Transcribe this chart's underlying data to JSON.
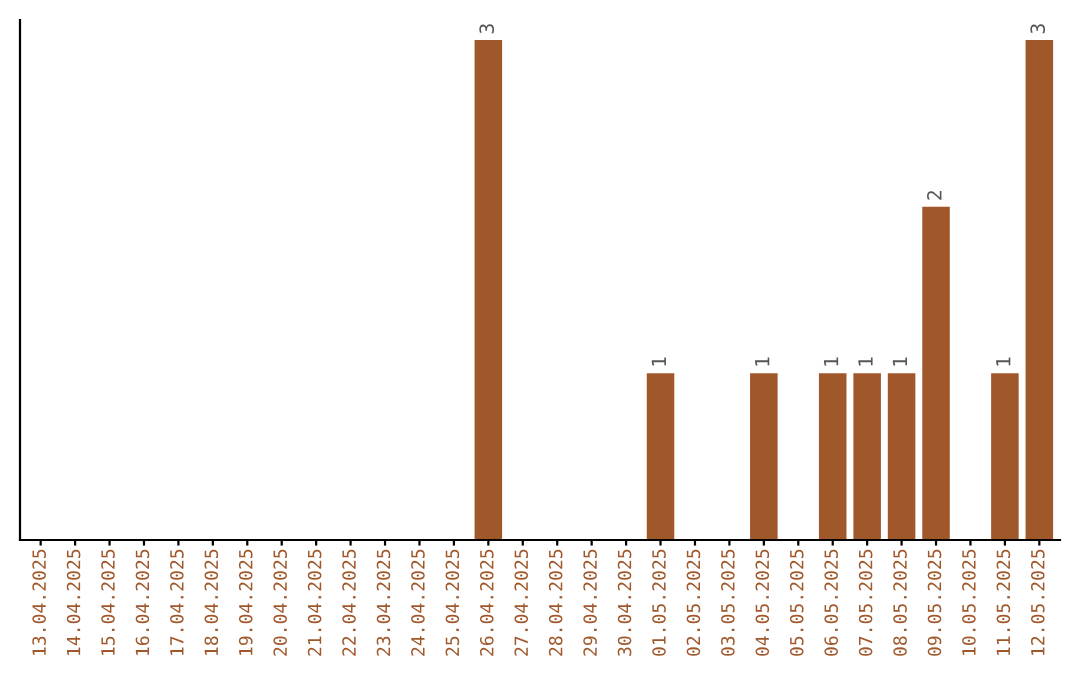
{
  "chart_data": {
    "type": "bar",
    "categories": [
      "13.04.2025",
      "14.04.2025",
      "15.04.2025",
      "16.04.2025",
      "17.04.2025",
      "18.04.2025",
      "19.04.2025",
      "20.04.2025",
      "21.04.2025",
      "22.04.2025",
      "23.04.2025",
      "24.04.2025",
      "25.04.2025",
      "26.04.2025",
      "27.04.2025",
      "28.04.2025",
      "29.04.2025",
      "30.04.2025",
      "01.05.2025",
      "02.05.2025",
      "03.05.2025",
      "04.05.2025",
      "05.05.2025",
      "06.05.2025",
      "07.05.2025",
      "08.05.2025",
      "09.05.2025",
      "10.05.2025",
      "11.05.2025",
      "12.05.2025"
    ],
    "values": [
      null,
      null,
      null,
      null,
      null,
      null,
      null,
      null,
      null,
      null,
      null,
      null,
      null,
      3,
      null,
      null,
      null,
      null,
      1,
      null,
      null,
      1,
      null,
      1,
      1,
      1,
      2,
      null,
      1,
      3
    ],
    "data_labels": true,
    "color": "#a0582b",
    "tick_labels": "x",
    "grid": false
  }
}
